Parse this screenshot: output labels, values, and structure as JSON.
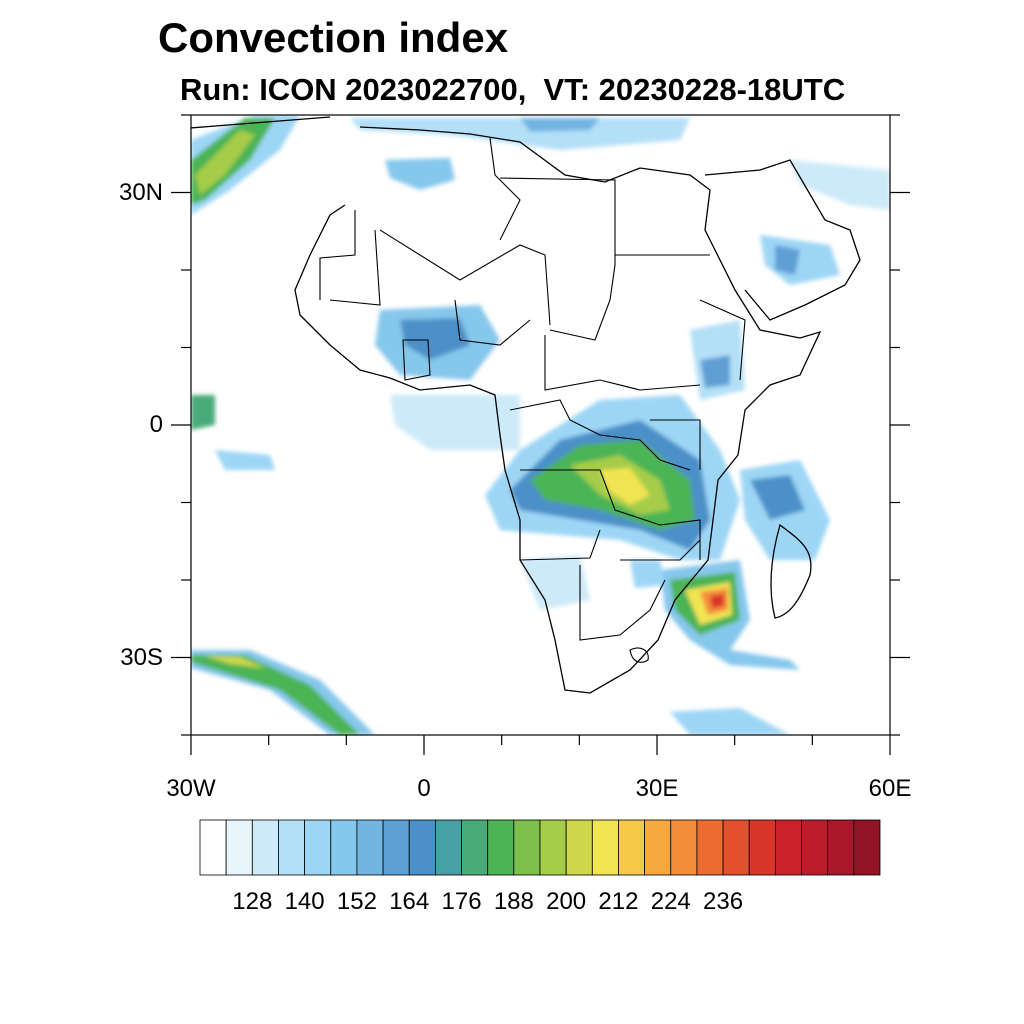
{
  "header": {
    "title": "Convection index",
    "subtitle": "Run: ICON 2023022700,  VT: 20230228-18UTC"
  },
  "map": {
    "lon_range": [
      -30,
      60
    ],
    "lat_range": [
      -40,
      40
    ],
    "lat_ticks": [
      {
        "lat": 30,
        "label": "30N"
      },
      {
        "lat": 0,
        "label": "0"
      },
      {
        "lat": -30,
        "label": "30S"
      }
    ],
    "lon_ticks": [
      {
        "lon": -30,
        "label": "30W"
      },
      {
        "lon": 0,
        "label": "0"
      },
      {
        "lon": 30,
        "label": "30E"
      },
      {
        "lon": 60,
        "label": "60E"
      }
    ]
  },
  "colorbar": {
    "colors": [
      "#ffffff",
      "#e8f5fc",
      "#cdeaf9",
      "#b4e0f7",
      "#9dd6f5",
      "#86c7ec",
      "#72b4e2",
      "#5e9fd4",
      "#4b90c8",
      "#47a0a6",
      "#4aab7a",
      "#4cb455",
      "#7ec04b",
      "#a6cc4a",
      "#cfd84a",
      "#f1e453",
      "#f8c84a",
      "#f7a940",
      "#f48d3a",
      "#ee6c33",
      "#e4502e",
      "#d93529",
      "#cb2229",
      "#bb1c2a",
      "#a8172a",
      "#921425"
    ],
    "labels": [
      "128",
      "140",
      "152",
      "164",
      "176",
      "188",
      "200",
      "212",
      "224",
      "236"
    ]
  }
}
